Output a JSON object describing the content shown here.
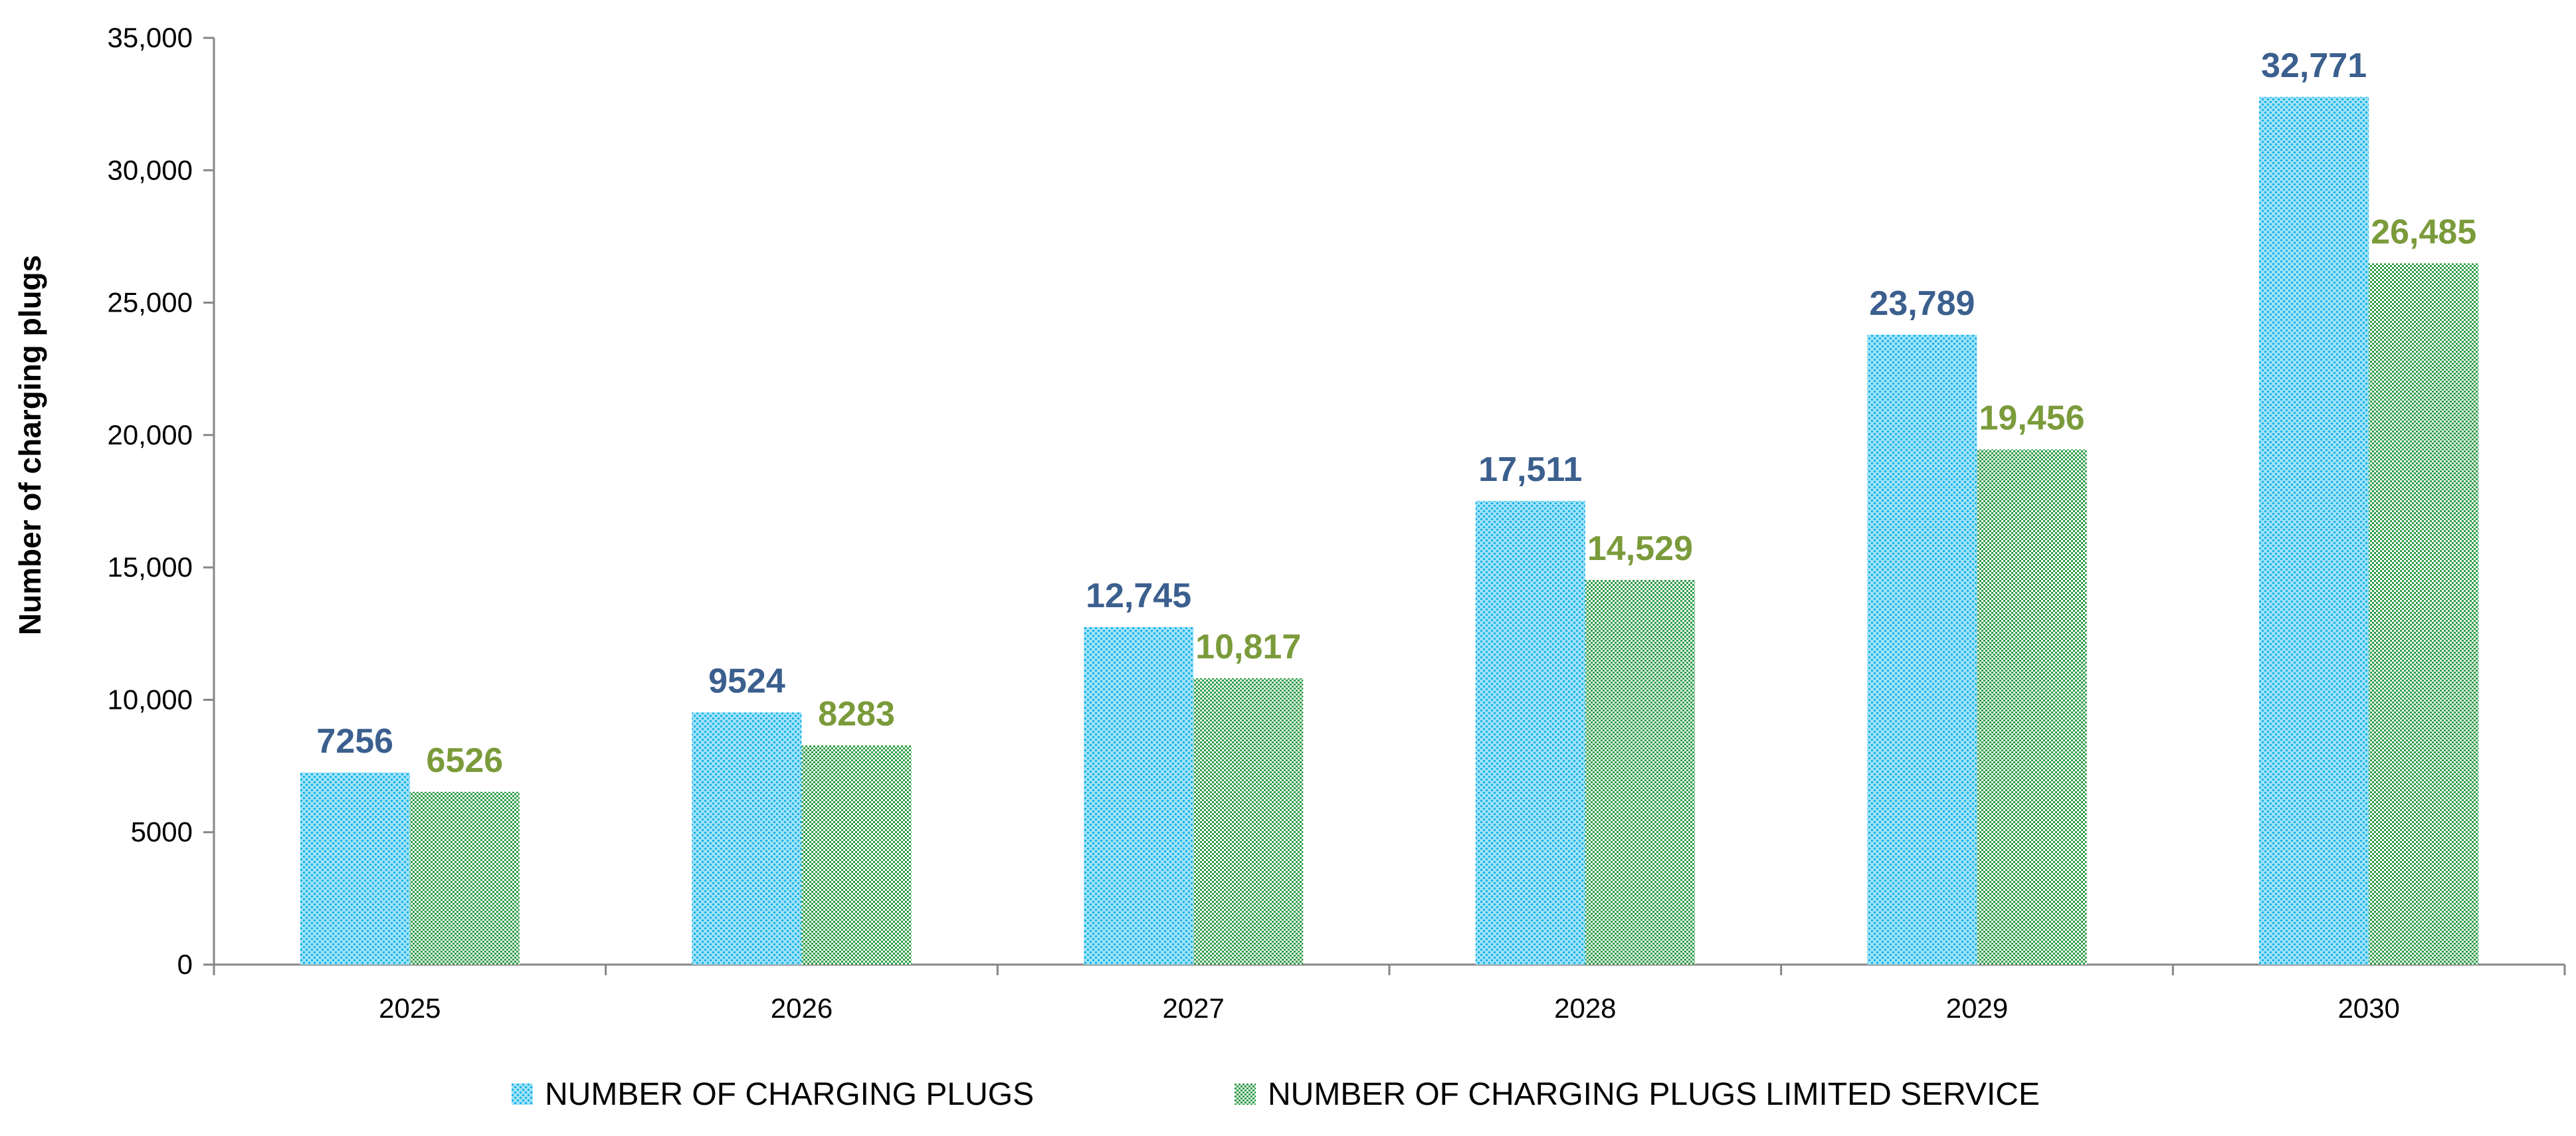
{
  "chart_data": {
    "type": "bar",
    "title": "",
    "xlabel": "",
    "ylabel": "Number of  charging plugs",
    "categories": [
      "2025",
      "2026",
      "2027",
      "2028",
      "2029",
      "2030"
    ],
    "ylim": [
      0,
      35000
    ],
    "yticks": [
      0,
      5000,
      10000,
      15000,
      20000,
      25000,
      30000,
      35000
    ],
    "ytick_labels": [
      "0",
      "5000",
      "10,000",
      "15,000",
      "20,000",
      "25,000",
      "30,000",
      "35,000"
    ],
    "grid": false,
    "legend_position": "bottom",
    "series": [
      {
        "name": "NUMBER OF CHARGING PLUGS",
        "values": [
          7256,
          9524,
          12745,
          17511,
          23789,
          32771
        ],
        "labels": [
          "7256",
          "9524",
          "12,745",
          "17,511",
          "23,789",
          "32,771"
        ],
        "color": "#1ab3e8",
        "pattern_color": "#9fe2f7",
        "label_color": "#3b5f8e"
      },
      {
        "name": "NUMBER OF CHARGING PLUGS LIMITED SERVICE",
        "values": [
          6526,
          8283,
          10817,
          14529,
          19456,
          26485
        ],
        "labels": [
          "6526",
          "8283",
          "10,817",
          "14,529",
          "19,456",
          "26,485"
        ],
        "color": "#2e9d48",
        "pattern_color": "#ffffff",
        "label_color": "#7b9b3b"
      }
    ]
  }
}
